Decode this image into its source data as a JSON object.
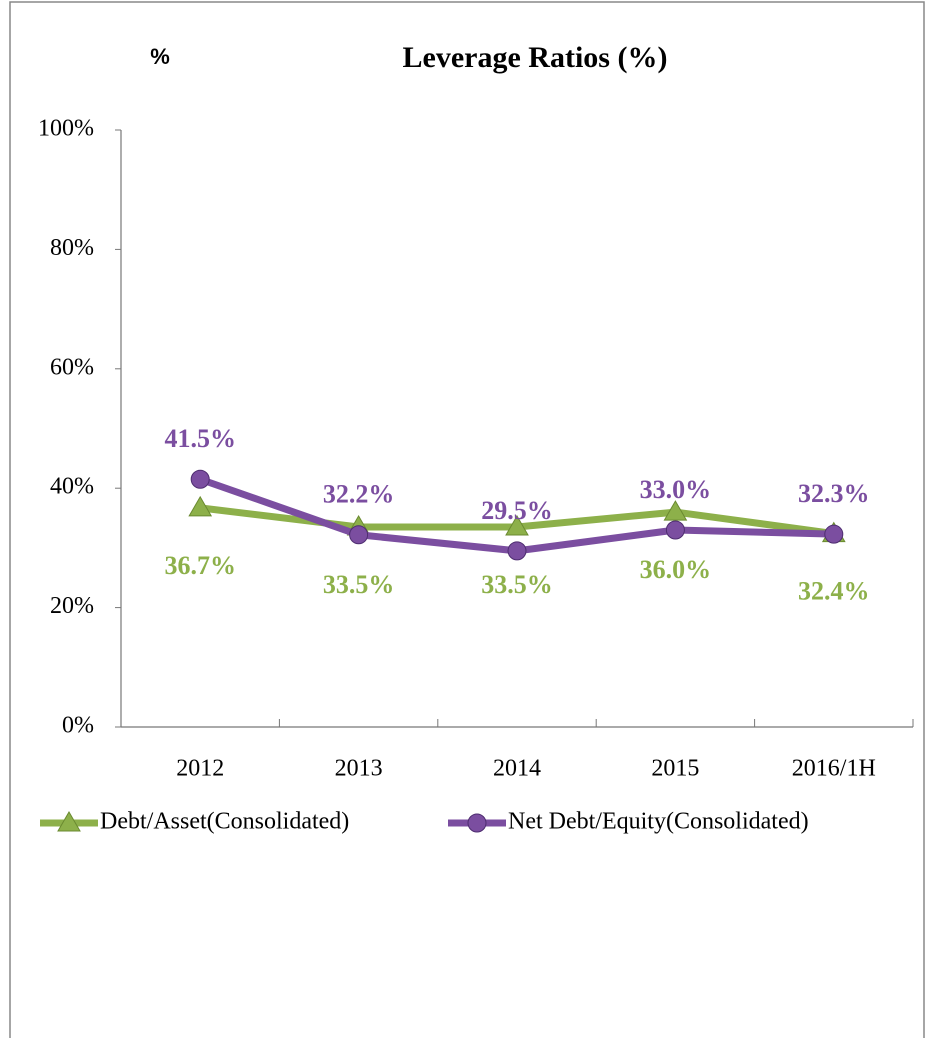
{
  "chart_data": {
    "type": "line",
    "title": "Leverage Ratios (%)",
    "y_label": "%",
    "categories": [
      "2012",
      "2013",
      "2014",
      "2015",
      "2016/1H"
    ],
    "series": [
      {
        "name": "Debt/Asset(Consolidated)",
        "color": "#8db04a",
        "marker": "triangle",
        "values": [
          36.7,
          33.5,
          33.5,
          36.0,
          32.4
        ],
        "value_labels": [
          "36.7%",
          "33.5%",
          "33.5%",
          "36.0%",
          "32.4%"
        ]
      },
      {
        "name": "Net Debt/Equity(Consolidated)",
        "color": "#7b4ea0",
        "marker": "circle",
        "values": [
          41.5,
          32.2,
          29.5,
          33.0,
          32.3
        ],
        "value_labels": [
          "41.5%",
          "32.2%",
          "29.5%",
          "33.0%",
          "32.3%"
        ]
      }
    ],
    "ylim": [
      0,
      100
    ],
    "yticks": [
      {
        "value": 0,
        "label": "0%"
      },
      {
        "value": 20,
        "label": "20%"
      },
      {
        "value": 40,
        "label": "40%"
      },
      {
        "value": 60,
        "label": "60%"
      },
      {
        "value": 80,
        "label": "80%"
      },
      {
        "value": 100,
        "label": "100%"
      }
    ],
    "legend": "bottom"
  }
}
